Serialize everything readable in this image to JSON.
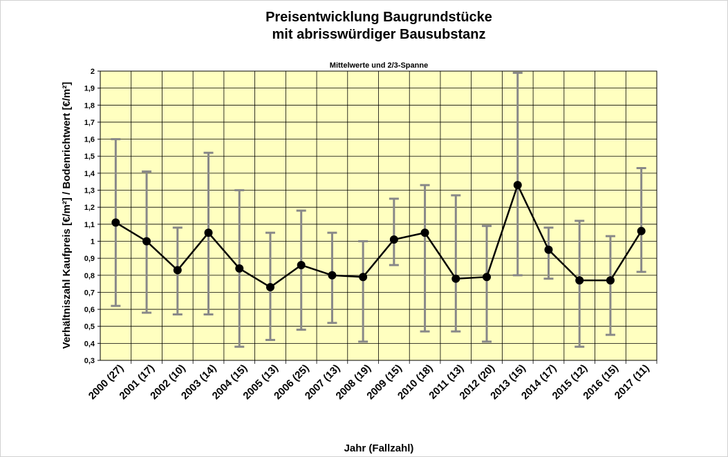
{
  "chart_data": {
    "type": "errorbar-line",
    "title": "Preisentwicklung Baugrundstücke",
    "title2": "mit abrisswürdiger Bausubstanz",
    "subtitle": "Mittelwerte und 2/3-Spanne",
    "ylabel": "Verhältniszahl Kaufpreis [€/m²] / Bodenrichtwert [€/m²]",
    "xlabel": "Jahr (Fallzahl)",
    "categories": [
      "2000 (27)",
      "2001 (17)",
      "2002 (10)",
      "2003 (14)",
      "2004 (15)",
      "2005 (13)",
      "2006 (25)",
      "2007 (13)",
      "2008 (19)",
      "2009 (15)",
      "2010 (18)",
      "2011 (13)",
      "2012 (20)",
      "2013 (15)",
      "2014 (17)",
      "2015 (12)",
      "2016 (15)",
      "2017 (11)"
    ],
    "series": [
      {
        "color": "#000000",
        "error_color": "#888888",
        "values": [
          1.11,
          1.0,
          0.83,
          1.05,
          0.84,
          0.73,
          0.86,
          0.8,
          0.79,
          1.01,
          1.05,
          0.78,
          0.79,
          1.33,
          0.95,
          0.77,
          0.77,
          1.06
        ],
        "low": [
          0.62,
          0.58,
          0.57,
          0.57,
          0.38,
          0.42,
          0.48,
          0.52,
          0.41,
          0.86,
          0.47,
          0.47,
          0.41,
          0.8,
          0.78,
          0.38,
          0.45,
          0.82
        ],
        "high": [
          1.6,
          1.41,
          1.08,
          1.52,
          1.3,
          1.05,
          1.18,
          1.05,
          1.0,
          1.25,
          1.33,
          1.27,
          1.09,
          1.99,
          1.08,
          1.12,
          1.03,
          1.43
        ]
      }
    ],
    "ylim": [
      0.3,
      2
    ],
    "yticks": [
      {
        "value": 0.3,
        "label": "0,3"
      },
      {
        "value": 0.4,
        "label": "0,4"
      },
      {
        "value": 0.5,
        "label": "0,5"
      },
      {
        "value": 0.6,
        "label": "0,6"
      },
      {
        "value": 0.7,
        "label": "0,7"
      },
      {
        "value": 0.8,
        "label": "0,8"
      },
      {
        "value": 0.9,
        "label": "0,9"
      },
      1,
      {
        "value": 1.1,
        "label": "1,1"
      },
      {
        "value": 1.2,
        "label": "1,2"
      },
      {
        "value": 1.3,
        "label": "1,3"
      },
      {
        "value": 1.4,
        "label": "1,4"
      },
      {
        "value": 1.5,
        "label": "1,5"
      },
      {
        "value": 1.6,
        "label": "1,6"
      },
      {
        "value": 1.7,
        "label": "1,7"
      },
      {
        "value": 1.8,
        "label": "1,8"
      },
      {
        "value": 1.9,
        "label": "1,9"
      },
      2
    ],
    "grid": true
  }
}
